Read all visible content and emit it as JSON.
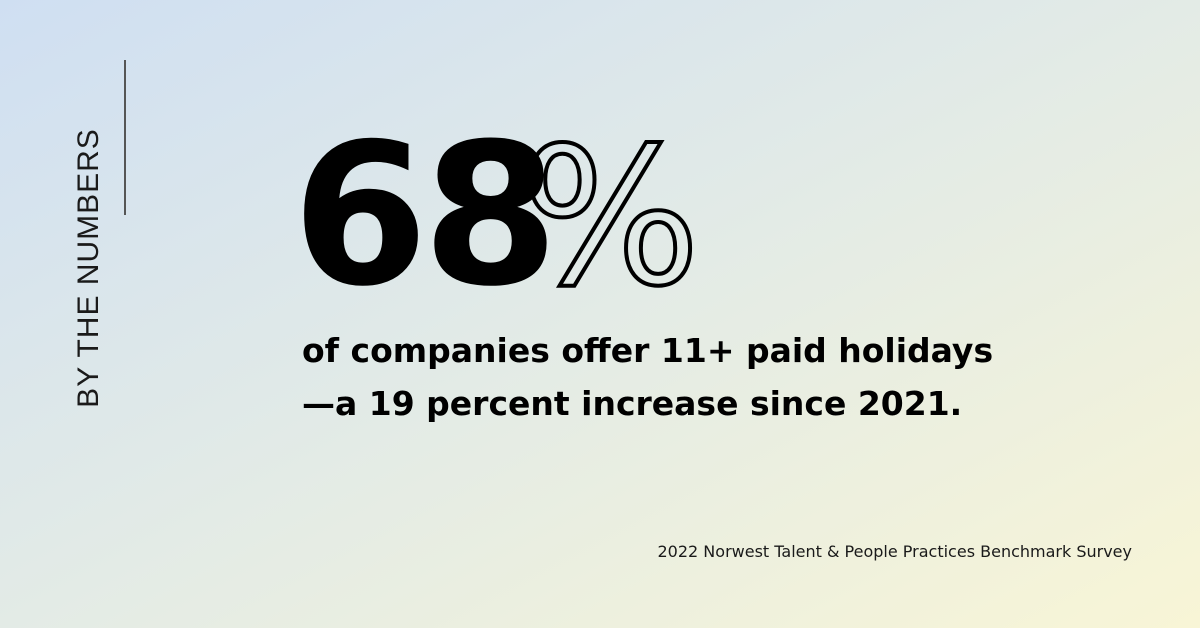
{
  "label": "BY THE NUMBERS",
  "stat": {
    "number": "68",
    "symbol": "%"
  },
  "description": [
    "of companies offer 11+ paid holidays",
    "—a 19 percent increase since 2021."
  ],
  "source": "2022 Norwest Talent & People Practices Benchmark Survey"
}
